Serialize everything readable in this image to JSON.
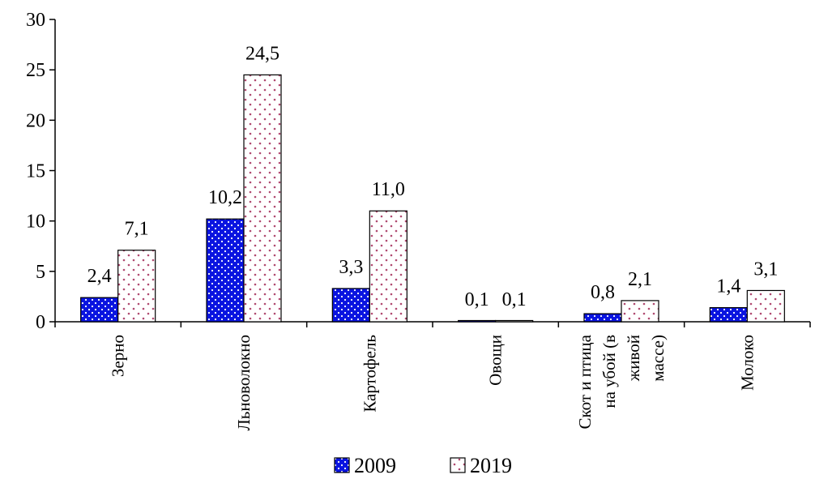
{
  "chart_data": {
    "type": "bar",
    "title": "",
    "xlabel": "",
    "ylabel": "",
    "ylim": [
      0,
      30
    ],
    "yticks": [
      0,
      5,
      10,
      15,
      20,
      25,
      30
    ],
    "grid": false,
    "legend_position": "bottom",
    "categories": [
      [
        "Зерно"
      ],
      [
        "Льноволокно"
      ],
      [
        "Картофель"
      ],
      [
        "Овощи"
      ],
      [
        "Скот и птица",
        "на убой (в",
        "живой",
        "массе)"
      ],
      [
        "Молоко"
      ]
    ],
    "series": [
      {
        "name": "2009",
        "values": [
          2.4,
          10.2,
          3.3,
          0.1,
          0.8,
          1.4
        ],
        "labels": [
          "2,4",
          "10,2",
          "3,3",
          "0,1",
          "0,8",
          "1,4"
        ],
        "color": "#0a14e0",
        "pattern": "dots-on-blue"
      },
      {
        "name": "2019",
        "values": [
          7.1,
          24.5,
          11.0,
          0.1,
          2.1,
          3.1
        ],
        "labels": [
          "7,1",
          "24,5",
          "11,0",
          "0,1",
          "2,1",
          "3,1"
        ],
        "color": "#b04a70",
        "pattern": "dots-on-white"
      }
    ]
  }
}
